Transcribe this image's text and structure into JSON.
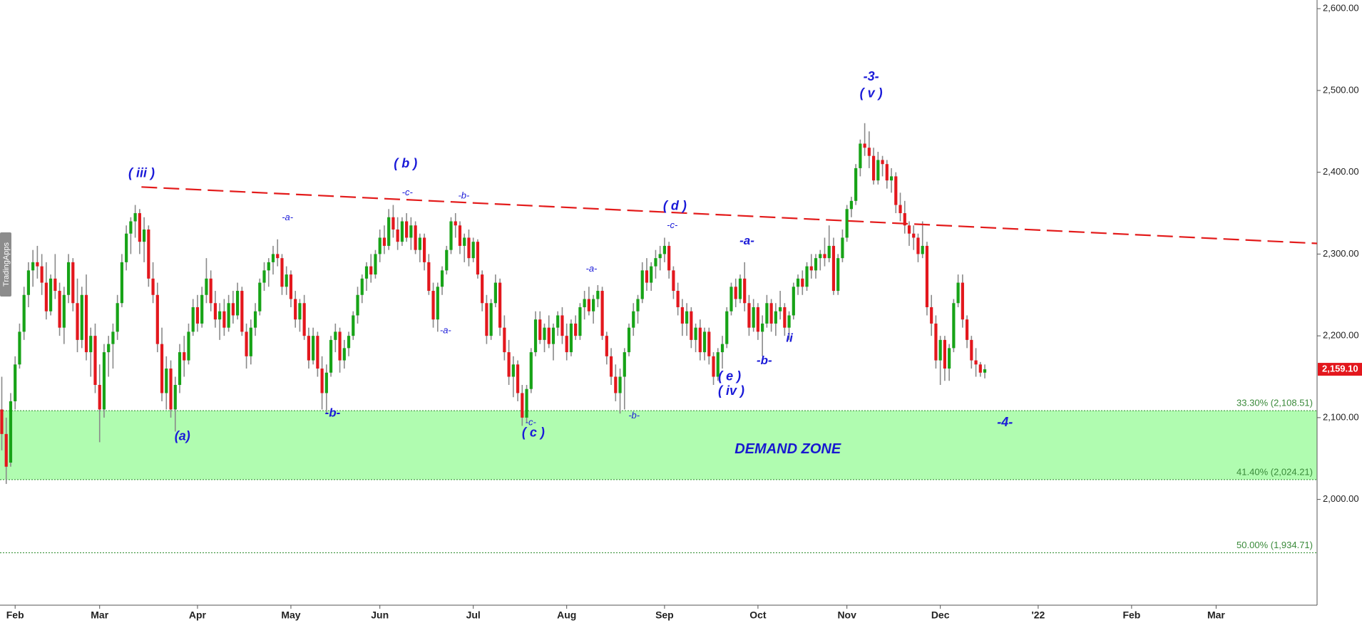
{
  "chart_data": {
    "type": "candlestick",
    "watermark": "TradingApps",
    "up_color": "#17a317",
    "down_color": "#e3171d",
    "wick_color": "#8a8a8a",
    "xlim": [
      -0.4,
      295.7
    ],
    "xticks": [
      {
        "value": 3,
        "label": "Feb"
      },
      {
        "value": 22,
        "label": "Mar"
      },
      {
        "value": 44,
        "label": "Apr"
      },
      {
        "value": 65,
        "label": "May"
      },
      {
        "value": 85,
        "label": "Jun"
      },
      {
        "value": 106,
        "label": "Jul"
      },
      {
        "value": 127,
        "label": "Aug"
      },
      {
        "value": 149,
        "label": "Sep"
      },
      {
        "value": 170,
        "label": "Oct"
      },
      {
        "value": 190,
        "label": "Nov"
      },
      {
        "value": 211,
        "label": "Dec"
      },
      {
        "value": 233,
        "label": "'22"
      },
      {
        "value": 254,
        "label": "Feb"
      },
      {
        "value": 273,
        "label": "Mar"
      }
    ],
    "ylim": [
      1870.7,
      2610.6
    ],
    "yticks": [
      {
        "value": 2000,
        "label": "2,000.00"
      },
      {
        "value": 2100,
        "label": "2,100.00"
      },
      {
        "value": 2200,
        "label": "2,200.00"
      },
      {
        "value": 2300,
        "label": "2,300.00"
      },
      {
        "value": 2400,
        "label": "2,400.00"
      },
      {
        "value": 2500,
        "label": "2,500.00"
      },
      {
        "value": 2600,
        "label": "2,600.00"
      }
    ],
    "last_price": {
      "value": 2159.1,
      "label": "2,159.10"
    },
    "fib_levels": [
      {
        "value": 2108.51,
        "label": "33.30% (2,108.51)"
      },
      {
        "value": 2024.21,
        "label": "41.40% (2,024.21)"
      },
      {
        "value": 1934.71,
        "label": "50.00% (1,934.71)"
      }
    ],
    "zone": {
      "label": "DEMAND ZONE",
      "color": "#b0fcb0"
    },
    "trendline": {
      "x": [
        31.4,
        295.7
      ],
      "y": [
        2382,
        2313
      ],
      "color": "#e31b1b"
    },
    "annotations": [
      "( iii )",
      "(a)",
      "-a-",
      "-b-",
      "( b )",
      "-c-",
      "-b-",
      "-a-",
      "-c-",
      "( c )",
      "-a-",
      "-b-",
      "( d )",
      "-c-",
      "-a-",
      "( e )",
      "( iv )",
      "-b-",
      "ii",
      "-3-",
      "( v )",
      "-4-"
    ],
    "ohlc": [
      [
        2110,
        2150,
        2060,
        2080
      ],
      [
        2080,
        2100,
        2019,
        2040
      ],
      [
        2045,
        2130,
        2040,
        2120
      ],
      [
        2120,
        2175,
        2110,
        2165
      ],
      [
        2165,
        2215,
        2160,
        2205
      ],
      [
        2205,
        2260,
        2195,
        2250
      ],
      [
        2250,
        2290,
        2235,
        2280
      ],
      [
        2280,
        2305,
        2260,
        2290
      ],
      [
        2290,
        2310,
        2270,
        2285
      ],
      [
        2285,
        2300,
        2250,
        2265
      ],
      [
        2265,
        2290,
        2220,
        2230
      ],
      [
        2230,
        2275,
        2225,
        2270
      ],
      [
        2270,
        2300,
        2245,
        2255
      ],
      [
        2255,
        2265,
        2200,
        2210
      ],
      [
        2210,
        2260,
        2190,
        2250
      ],
      [
        2250,
        2300,
        2240,
        2290
      ],
      [
        2290,
        2295,
        2230,
        2240
      ],
      [
        2240,
        2270,
        2180,
        2195
      ],
      [
        2195,
        2260,
        2185,
        2250
      ],
      [
        2250,
        2275,
        2170,
        2180
      ],
      [
        2180,
        2210,
        2150,
        2200
      ],
      [
        2200,
        2215,
        2130,
        2140
      ],
      [
        2140,
        2165,
        2070,
        2110
      ],
      [
        2110,
        2190,
        2100,
        2180
      ],
      [
        2180,
        2200,
        2150,
        2190
      ],
      [
        2190,
        2215,
        2160,
        2205
      ],
      [
        2205,
        2250,
        2195,
        2240
      ],
      [
        2240,
        2300,
        2235,
        2290
      ],
      [
        2290,
        2335,
        2280,
        2325
      ],
      [
        2325,
        2345,
        2300,
        2340
      ],
      [
        2340,
        2360,
        2320,
        2350
      ],
      [
        2350,
        2355,
        2300,
        2315
      ],
      [
        2315,
        2345,
        2290,
        2330
      ],
      [
        2330,
        2335,
        2260,
        2270
      ],
      [
        2270,
        2290,
        2240,
        2250
      ],
      [
        2250,
        2265,
        2180,
        2190
      ],
      [
        2190,
        2210,
        2120,
        2130
      ],
      [
        2130,
        2175,
        2110,
        2160
      ],
      [
        2160,
        2170,
        2100,
        2110
      ],
      [
        2110,
        2150,
        2083,
        2140
      ],
      [
        2140,
        2190,
        2130,
        2180
      ],
      [
        2180,
        2200,
        2150,
        2170
      ],
      [
        2170,
        2215,
        2165,
        2205
      ],
      [
        2205,
        2245,
        2200,
        2235
      ],
      [
        2235,
        2250,
        2205,
        2215
      ],
      [
        2215,
        2260,
        2210,
        2250
      ],
      [
        2250,
        2295,
        2240,
        2270
      ],
      [
        2270,
        2280,
        2230,
        2240
      ],
      [
        2240,
        2255,
        2210,
        2220
      ],
      [
        2220,
        2240,
        2195,
        2230
      ],
      [
        2230,
        2245,
        2200,
        2210
      ],
      [
        2210,
        2250,
        2205,
        2240
      ],
      [
        2240,
        2255,
        2215,
        2225
      ],
      [
        2225,
        2265,
        2220,
        2255
      ],
      [
        2255,
        2260,
        2200,
        2205
      ],
      [
        2205,
        2215,
        2160,
        2175
      ],
      [
        2175,
        2220,
        2165,
        2210
      ],
      [
        2210,
        2240,
        2200,
        2230
      ],
      [
        2230,
        2270,
        2225,
        2265
      ],
      [
        2265,
        2290,
        2255,
        2280
      ],
      [
        2280,
        2295,
        2260,
        2290
      ],
      [
        2290,
        2310,
        2275,
        2300
      ],
      [
        2300,
        2318,
        2285,
        2295
      ],
      [
        2295,
        2300,
        2250,
        2260
      ],
      [
        2260,
        2285,
        2250,
        2275
      ],
      [
        2275,
        2280,
        2235,
        2245
      ],
      [
        2245,
        2255,
        2210,
        2220
      ],
      [
        2220,
        2245,
        2205,
        2240
      ],
      [
        2240,
        2250,
        2195,
        2200
      ],
      [
        2200,
        2210,
        2160,
        2170
      ],
      [
        2170,
        2210,
        2165,
        2200
      ],
      [
        2200,
        2205,
        2150,
        2160
      ],
      [
        2160,
        2175,
        2110,
        2130
      ],
      [
        2130,
        2165,
        2105,
        2155
      ],
      [
        2155,
        2200,
        2150,
        2195
      ],
      [
        2195,
        2215,
        2180,
        2205
      ],
      [
        2205,
        2210,
        2155,
        2170
      ],
      [
        2170,
        2195,
        2160,
        2185
      ],
      [
        2185,
        2205,
        2175,
        2200
      ],
      [
        2200,
        2230,
        2195,
        2225
      ],
      [
        2225,
        2260,
        2215,
        2250
      ],
      [
        2250,
        2275,
        2240,
        2270
      ],
      [
        2270,
        2290,
        2255,
        2285
      ],
      [
        2285,
        2300,
        2265,
        2275
      ],
      [
        2275,
        2305,
        2270,
        2300
      ],
      [
        2300,
        2330,
        2290,
        2320
      ],
      [
        2320,
        2335,
        2300,
        2310
      ],
      [
        2310,
        2355,
        2305,
        2345
      ],
      [
        2345,
        2360,
        2320,
        2330
      ],
      [
        2330,
        2345,
        2305,
        2315
      ],
      [
        2315,
        2345,
        2310,
        2340
      ],
      [
        2340,
        2350,
        2315,
        2320
      ],
      [
        2320,
        2345,
        2305,
        2335
      ],
      [
        2335,
        2340,
        2300,
        2305
      ],
      [
        2305,
        2325,
        2290,
        2320
      ],
      [
        2320,
        2325,
        2280,
        2290
      ],
      [
        2290,
        2300,
        2250,
        2255
      ],
      [
        2255,
        2265,
        2210,
        2220
      ],
      [
        2220,
        2265,
        2205,
        2260
      ],
      [
        2260,
        2285,
        2250,
        2280
      ],
      [
        2280,
        2310,
        2275,
        2305
      ],
      [
        2305,
        2345,
        2300,
        2340
      ],
      [
        2340,
        2350,
        2320,
        2335
      ],
      [
        2335,
        2340,
        2300,
        2310
      ],
      [
        2310,
        2325,
        2290,
        2320
      ],
      [
        2320,
        2330,
        2285,
        2295
      ],
      [
        2295,
        2320,
        2290,
        2315
      ],
      [
        2315,
        2318,
        2270,
        2275
      ],
      [
        2275,
        2280,
        2230,
        2240
      ],
      [
        2240,
        2250,
        2190,
        2200
      ],
      [
        2200,
        2245,
        2195,
        2240
      ],
      [
        2240,
        2275,
        2235,
        2265
      ],
      [
        2265,
        2270,
        2200,
        2210
      ],
      [
        2210,
        2225,
        2170,
        2180
      ],
      [
        2180,
        2195,
        2140,
        2150
      ],
      [
        2150,
        2175,
        2125,
        2165
      ],
      [
        2165,
        2170,
        2120,
        2130
      ],
      [
        2130,
        2140,
        2090,
        2100
      ],
      [
        2100,
        2140,
        2094,
        2135
      ],
      [
        2135,
        2185,
        2130,
        2180
      ],
      [
        2180,
        2230,
        2175,
        2220
      ],
      [
        2220,
        2230,
        2190,
        2195
      ],
      [
        2195,
        2215,
        2180,
        2210
      ],
      [
        2210,
        2225,
        2185,
        2190
      ],
      [
        2190,
        2215,
        2170,
        2210
      ],
      [
        2210,
        2230,
        2200,
        2225
      ],
      [
        2225,
        2235,
        2190,
        2200
      ],
      [
        2200,
        2215,
        2170,
        2180
      ],
      [
        2180,
        2220,
        2175,
        2215
      ],
      [
        2215,
        2225,
        2195,
        2200
      ],
      [
        2200,
        2240,
        2195,
        2235
      ],
      [
        2235,
        2255,
        2220,
        2245
      ],
      [
        2245,
        2260,
        2225,
        2230
      ],
      [
        2230,
        2250,
        2215,
        2245
      ],
      [
        2245,
        2262,
        2235,
        2255
      ],
      [
        2255,
        2260,
        2195,
        2200
      ],
      [
        2200,
        2205,
        2165,
        2175
      ],
      [
        2175,
        2185,
        2140,
        2150
      ],
      [
        2150,
        2165,
        2120,
        2130
      ],
      [
        2130,
        2160,
        2105,
        2150
      ],
      [
        2150,
        2185,
        2110,
        2180
      ],
      [
        2180,
        2215,
        2175,
        2210
      ],
      [
        2210,
        2240,
        2200,
        2230
      ],
      [
        2230,
        2250,
        2215,
        2245
      ],
      [
        2245,
        2290,
        2240,
        2280
      ],
      [
        2280,
        2295,
        2255,
        2265
      ],
      [
        2265,
        2290,
        2255,
        2285
      ],
      [
        2285,
        2305,
        2270,
        2295
      ],
      [
        2295,
        2310,
        2280,
        2300
      ],
      [
        2300,
        2320,
        2290,
        2310
      ],
      [
        2310,
        2315,
        2270,
        2280
      ],
      [
        2280,
        2285,
        2245,
        2255
      ],
      [
        2255,
        2265,
        2225,
        2235
      ],
      [
        2235,
        2245,
        2200,
        2215
      ],
      [
        2215,
        2240,
        2200,
        2230
      ],
      [
        2230,
        2235,
        2185,
        2195
      ],
      [
        2195,
        2215,
        2180,
        2210
      ],
      [
        2210,
        2220,
        2170,
        2180
      ],
      [
        2180,
        2210,
        2170,
        2205
      ],
      [
        2205,
        2210,
        2165,
        2175
      ],
      [
        2175,
        2180,
        2140,
        2150
      ],
      [
        2150,
        2185,
        2145,
        2180
      ],
      [
        2180,
        2200,
        2160,
        2190
      ],
      [
        2190,
        2235,
        2185,
        2230
      ],
      [
        2230,
        2265,
        2225,
        2260
      ],
      [
        2260,
        2270,
        2235,
        2245
      ],
      [
        2245,
        2275,
        2240,
        2270
      ],
      [
        2270,
        2290,
        2230,
        2240
      ],
      [
        2240,
        2250,
        2200,
        2210
      ],
      [
        2210,
        2245,
        2205,
        2235
      ],
      [
        2235,
        2240,
        2195,
        2205
      ],
      [
        2205,
        2225,
        2175,
        2215
      ],
      [
        2215,
        2250,
        2210,
        2240
      ],
      [
        2240,
        2245,
        2205,
        2215
      ],
      [
        2215,
        2240,
        2200,
        2230
      ],
      [
        2230,
        2255,
        2220,
        2235
      ],
      [
        2235,
        2240,
        2200,
        2210
      ],
      [
        2210,
        2230,
        2195,
        2225
      ],
      [
        2225,
        2265,
        2220,
        2260
      ],
      [
        2260,
        2275,
        2250,
        2270
      ],
      [
        2270,
        2280,
        2250,
        2260
      ],
      [
        2260,
        2290,
        2255,
        2285
      ],
      [
        2285,
        2300,
        2270,
        2280
      ],
      [
        2280,
        2300,
        2270,
        2295
      ],
      [
        2295,
        2305,
        2280,
        2300
      ],
      [
        2300,
        2320,
        2285,
        2295
      ],
      [
        2295,
        2335,
        2290,
        2310
      ],
      [
        2310,
        2320,
        2250,
        2255
      ],
      [
        2255,
        2300,
        2250,
        2295
      ],
      [
        2295,
        2330,
        2290,
        2320
      ],
      [
        2320,
        2360,
        2315,
        2355
      ],
      [
        2355,
        2370,
        2345,
        2365
      ],
      [
        2365,
        2410,
        2360,
        2405
      ],
      [
        2405,
        2440,
        2395,
        2435
      ],
      [
        2435,
        2460,
        2420,
        2430
      ],
      [
        2430,
        2450,
        2405,
        2420
      ],
      [
        2420,
        2430,
        2385,
        2390
      ],
      [
        2390,
        2425,
        2385,
        2415
      ],
      [
        2415,
        2420,
        2395,
        2410
      ],
      [
        2410,
        2415,
        2380,
        2390
      ],
      [
        2390,
        2405,
        2375,
        2395
      ],
      [
        2395,
        2400,
        2350,
        2360
      ],
      [
        2360,
        2375,
        2340,
        2350
      ],
      [
        2350,
        2365,
        2325,
        2335
      ],
      [
        2335,
        2340,
        2310,
        2325
      ],
      [
        2325,
        2335,
        2305,
        2320
      ],
      [
        2320,
        2325,
        2290,
        2300
      ],
      [
        2300,
        2340,
        2295,
        2310
      ],
      [
        2310,
        2315,
        2225,
        2235
      ],
      [
        2235,
        2250,
        2200,
        2215
      ],
      [
        2215,
        2225,
        2160,
        2170
      ],
      [
        2170,
        2200,
        2140,
        2195
      ],
      [
        2195,
        2200,
        2145,
        2160
      ],
      [
        2160,
        2190,
        2145,
        2185
      ],
      [
        2185,
        2245,
        2180,
        2240
      ],
      [
        2240,
        2275,
        2235,
        2265
      ],
      [
        2265,
        2275,
        2210,
        2220
      ],
      [
        2220,
        2225,
        2185,
        2195
      ],
      [
        2195,
        2200,
        2160,
        2170
      ],
      [
        2170,
        2185,
        2150,
        2165
      ],
      [
        2165,
        2168,
        2150,
        2155
      ],
      [
        2155,
        2165,
        2148,
        2159.1
      ]
    ]
  }
}
